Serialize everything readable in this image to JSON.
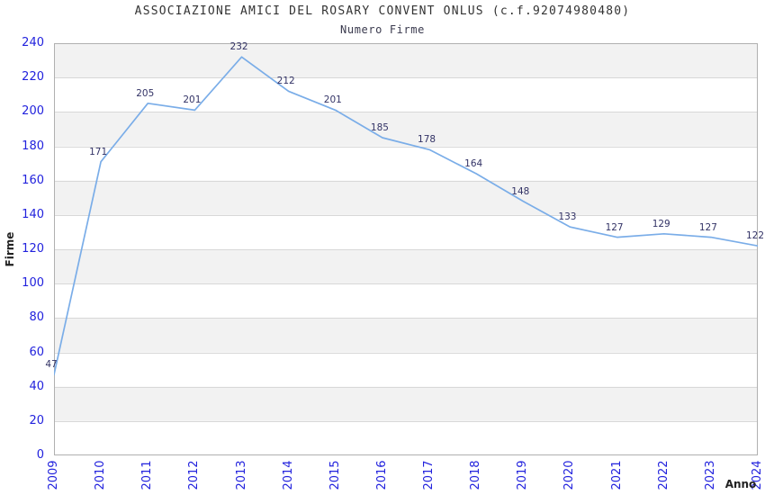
{
  "title": "ASSOCIAZIONE AMICI DEL ROSARY CONVENT ONLUS (c.f.92074980480)",
  "subtitle": "Numero Firme",
  "chart_data": {
    "type": "line",
    "title": "ASSOCIAZIONE AMICI DEL ROSARY CONVENT ONLUS (c.f.92074980480)",
    "subtitle": "Numero Firme",
    "x": [
      "2009",
      "2010",
      "2011",
      "2012",
      "2013",
      "2014",
      "2015",
      "2016",
      "2017",
      "2018",
      "2019",
      "2020",
      "2021",
      "2022",
      "2023",
      "2024"
    ],
    "values": [
      47,
      171,
      205,
      201,
      232,
      212,
      201,
      185,
      178,
      164,
      148,
      133,
      127,
      129,
      127,
      122
    ],
    "xlabel": "Anno",
    "ylabel": "Firme",
    "ylim": [
      0,
      240
    ],
    "yticks": [
      0,
      20,
      40,
      60,
      80,
      100,
      120,
      140,
      160,
      180,
      200,
      220,
      240
    ],
    "grid": "horizontal-bands-alternating",
    "legend": "none",
    "data_labels_visible": true,
    "colors": {
      "line": "#7aade8",
      "tick_label": "#2222dd",
      "data_label": "#333366",
      "band_fill": "#f2f2f2",
      "grid_line": "#d8d8d8",
      "plot_border": "#b0b0b0",
      "axis_title": "#222222",
      "title": "#333333",
      "subtitle": "#3a3a4e",
      "background": "#ffffff"
    }
  }
}
